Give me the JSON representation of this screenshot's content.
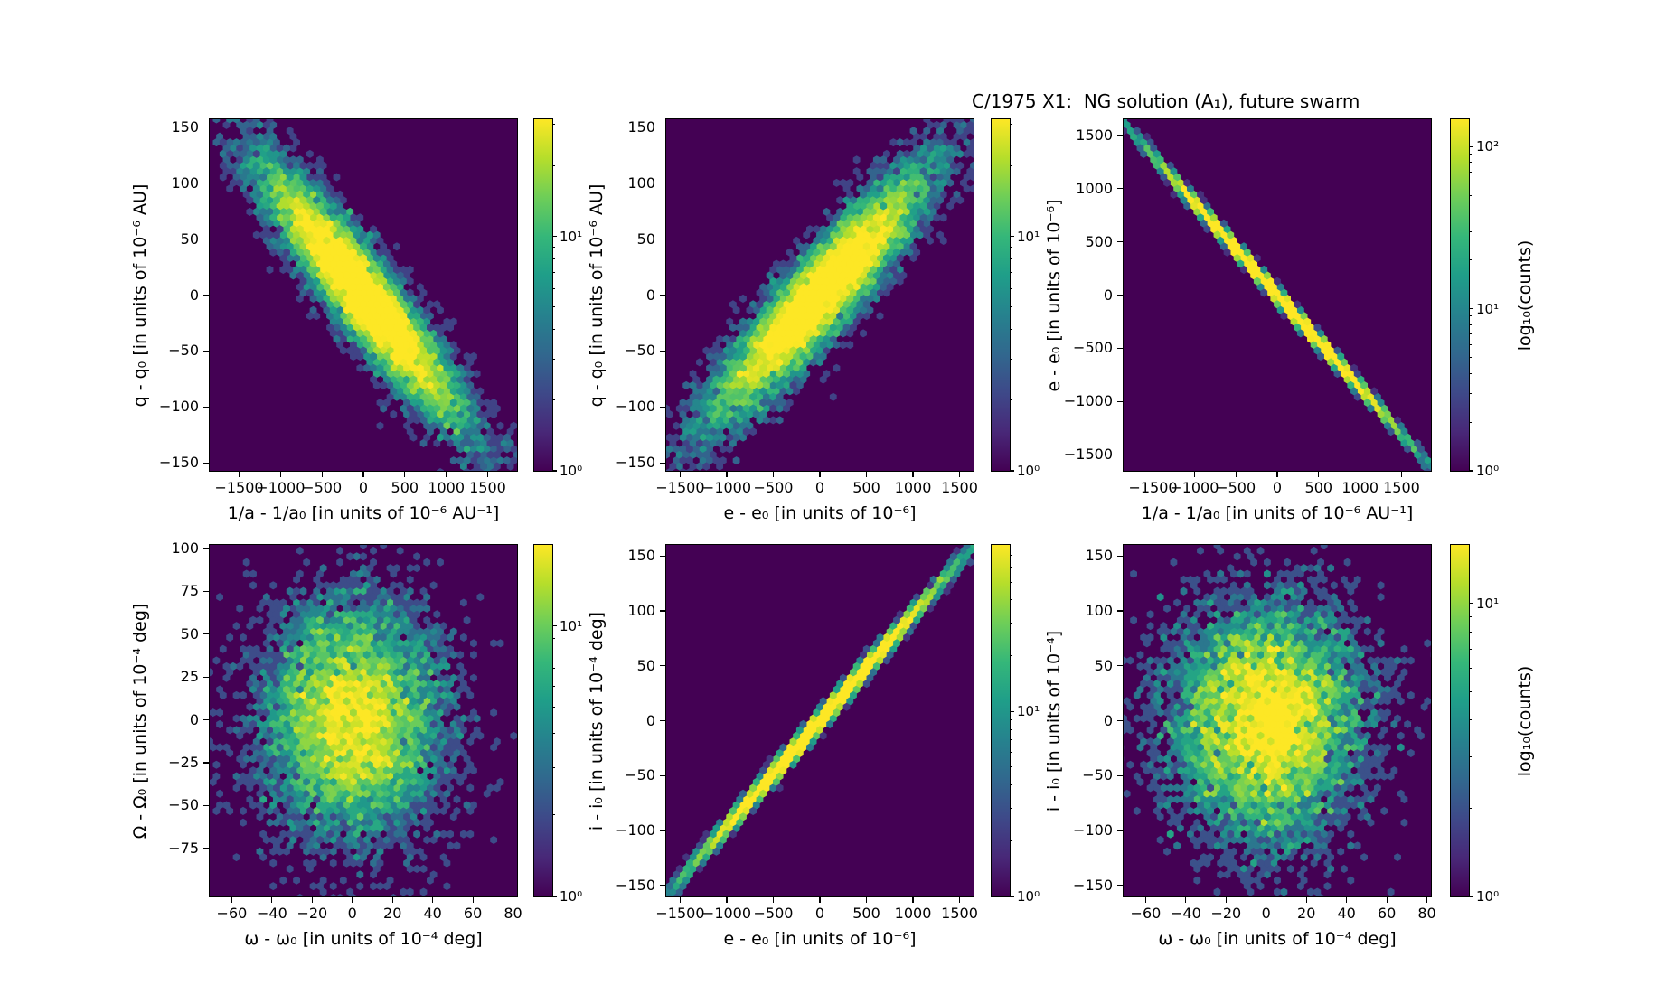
{
  "title": "C/1975 X1:  NG solution (A₁), future swarm",
  "colors": {
    "background": "#ffffff",
    "plot_background": "#440154",
    "axis_color": "#000000",
    "viridis_stops": [
      "#440154",
      "#482878",
      "#3e4989",
      "#31688e",
      "#26828e",
      "#1f9e89",
      "#35b779",
      "#6ece58",
      "#b5de2b",
      "#fde725"
    ]
  },
  "chart_data": [
    {
      "id": "top-left",
      "type": "hexbin",
      "xlabel": "1/a - 1/a₀ [in units of 10⁻⁶ AU⁻¹]",
      "ylabel": "q - q₀ [in units of 10⁻⁶ AU]",
      "xlim": [
        -1855,
        1855
      ],
      "ylim": [
        -157,
        157
      ],
      "xtick_values": [
        -1500,
        -1000,
        -500,
        0,
        500,
        1000,
        1500
      ],
      "xtick_labels": [
        "−1500",
        "−1000",
        "−500",
        "0",
        "500",
        "1000",
        "1500"
      ],
      "ytick_values": [
        150,
        100,
        50,
        0,
        -50,
        -100,
        -150
      ],
      "ytick_labels": [
        "150",
        "100",
        "50",
        "0",
        "−50",
        "−100",
        "−150"
      ],
      "colormap": "viridis",
      "grid": false,
      "distribution": {
        "kind": "gaussian-correlated",
        "n": 12000,
        "seed": 11,
        "sigma_x": 600,
        "slope": -0.088,
        "sigma_perp": 22
      },
      "vmax_log10": 1.5,
      "colorbar": {
        "size": "small",
        "label": "",
        "ticks": [
          {
            "exp": 1,
            "label": "10¹"
          },
          {
            "exp": 0,
            "label": "10⁰"
          }
        ]
      }
    },
    {
      "id": "top-middle",
      "type": "hexbin",
      "xlabel": "e - e₀ [in units of 10⁻⁶]",
      "ylabel": "q - q₀ [in units of 10⁻⁶ AU]",
      "xlim": [
        -1650,
        1650
      ],
      "ylim": [
        -157,
        157
      ],
      "xtick_values": [
        -1500,
        -1000,
        -500,
        0,
        500,
        1000,
        1500
      ],
      "xtick_labels": [
        "−1500",
        "−1000",
        "−500",
        "0",
        "500",
        "1000",
        "1500"
      ],
      "ytick_values": [
        150,
        100,
        50,
        0,
        -50,
        -100,
        -150
      ],
      "ytick_labels": [
        "150",
        "100",
        "50",
        "0",
        "−50",
        "−100",
        "−150"
      ],
      "colormap": "viridis",
      "grid": false,
      "distribution": {
        "kind": "gaussian-correlated",
        "n": 12000,
        "seed": 22,
        "sigma_x": 580,
        "slope": 0.088,
        "sigma_perp": 22
      },
      "vmax_log10": 1.5,
      "colorbar": {
        "size": "small",
        "label": "",
        "ticks": [
          {
            "exp": 1,
            "label": "10¹"
          },
          {
            "exp": 0,
            "label": "10⁰"
          }
        ]
      }
    },
    {
      "id": "top-right",
      "type": "hexbin",
      "xlabel": "1/a - 1/a₀ [in units of 10⁻⁶ AU⁻¹]",
      "ylabel": "e - e₀ [in units of 10⁻⁶]",
      "xlim": [
        -1855,
        1855
      ],
      "ylim": [
        -1650,
        1650
      ],
      "xtick_values": [
        -1500,
        -1000,
        -500,
        0,
        500,
        1000,
        1500
      ],
      "xtick_labels": [
        "−1500",
        "−1000",
        "−500",
        "0",
        "500",
        "1000",
        "1500"
      ],
      "ytick_values": [
        1500,
        1000,
        500,
        0,
        -500,
        -1000,
        -1500
      ],
      "ytick_labels": [
        "1500",
        "1000",
        "500",
        "0",
        "−500",
        "−1000",
        "−1500"
      ],
      "colormap": "viridis",
      "grid": false,
      "distribution": {
        "kind": "gaussian-correlated",
        "n": 25000,
        "seed": 33,
        "sigma_x": 640,
        "slope": -0.87,
        "sigma_perp": 25
      },
      "vmax_log10": 2.17,
      "colorbar": {
        "size": "large",
        "label": "log₁₀(counts)",
        "ticks": [
          {
            "exp": 2,
            "label": "10²"
          },
          {
            "exp": 1,
            "label": "10¹"
          },
          {
            "exp": 0,
            "label": "10⁰"
          }
        ]
      }
    },
    {
      "id": "bottom-left",
      "type": "hexbin",
      "xlabel": "ω - ω₀ [in units of 10⁻⁴ deg]",
      "ylabel": "Ω - Ω₀ [in units of 10⁻⁴ deg]",
      "xlim": [
        -71,
        82
      ],
      "ylim": [
        -103,
        102
      ],
      "xtick_values": [
        -60,
        -40,
        -20,
        0,
        20,
        40,
        60,
        80
      ],
      "xtick_labels": [
        "−60",
        "−40",
        "−20",
        "0",
        "20",
        "40",
        "60",
        "80"
      ],
      "ytick_values": [
        100,
        75,
        50,
        25,
        0,
        -25,
        -50,
        -75
      ],
      "ytick_labels": [
        "100",
        "75",
        "50",
        "25",
        "0",
        "−25",
        "−50",
        "−75"
      ],
      "colormap": "viridis",
      "grid": false,
      "distribution": {
        "kind": "gaussian-correlated",
        "n": 8000,
        "seed": 44,
        "sigma_x": 22,
        "slope": 0,
        "sigma_perp": 34
      },
      "vmax_log10": 1.3,
      "colorbar": {
        "size": "small",
        "label": "",
        "ticks": [
          {
            "exp": 1,
            "label": "10¹"
          },
          {
            "exp": 0,
            "label": "10⁰"
          }
        ]
      }
    },
    {
      "id": "bottom-middle",
      "type": "hexbin",
      "xlabel": "e - e₀ [in units of 10⁻⁶]",
      "ylabel": "i - i₀ [in units of 10⁻⁴ deg]",
      "xlim": [
        -1650,
        1650
      ],
      "ylim": [
        -160,
        160
      ],
      "xtick_values": [
        -1500,
        -1000,
        -500,
        0,
        500,
        1000,
        1500
      ],
      "xtick_labels": [
        "−1500",
        "−1000",
        "−500",
        "0",
        "500",
        "1000",
        "1500"
      ],
      "ytick_values": [
        150,
        100,
        50,
        0,
        -50,
        -100,
        -150
      ],
      "ytick_labels": [
        "150",
        "100",
        "50",
        "0",
        "−50",
        "−100",
        "−150"
      ],
      "colormap": "viridis",
      "grid": false,
      "distribution": {
        "kind": "gaussian-correlated",
        "n": 14000,
        "seed": 55,
        "sigma_x": 630,
        "slope": 0.0968,
        "sigma_perp": 4
      },
      "vmax_log10": 1.9,
      "colorbar": {
        "size": "small",
        "label": "",
        "ticks": [
          {
            "exp": 1,
            "label": "10¹"
          },
          {
            "exp": 0,
            "label": "10⁰"
          }
        ]
      }
    },
    {
      "id": "bottom-right",
      "type": "hexbin",
      "xlabel": "ω - ω₀ [in units of 10⁻⁴ deg]",
      "ylabel": "i - i₀ [in units of 10⁻⁴]",
      "xlim": [
        -71,
        82
      ],
      "ylim": [
        -160,
        160
      ],
      "xtick_values": [
        -60,
        -40,
        -20,
        0,
        20,
        40,
        60,
        80
      ],
      "xtick_labels": [
        "−60",
        "−40",
        "−20",
        "0",
        "20",
        "40",
        "60",
        "80"
      ],
      "ytick_values": [
        150,
        100,
        50,
        0,
        -50,
        -100,
        -150
      ],
      "ytick_labels": [
        "150",
        "100",
        "50",
        "0",
        "−50",
        "−100",
        "−150"
      ],
      "colormap": "viridis",
      "grid": false,
      "distribution": {
        "kind": "gaussian-correlated",
        "n": 8000,
        "seed": 66,
        "sigma_x": 23,
        "slope": 0,
        "sigma_perp": 52
      },
      "vmax_log10": 1.2,
      "colorbar": {
        "size": "large",
        "label": "log₁₀(counts)",
        "ticks": [
          {
            "exp": 1,
            "label": "10¹"
          },
          {
            "exp": 0,
            "label": "10⁰"
          }
        ]
      }
    }
  ]
}
